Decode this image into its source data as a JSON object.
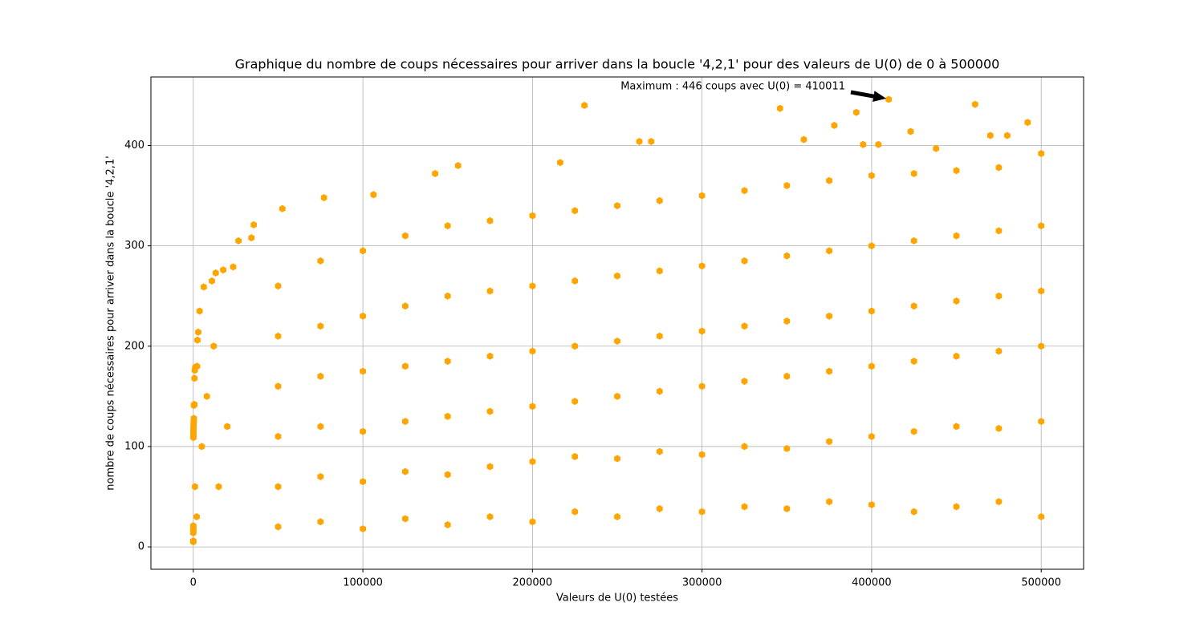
{
  "chart_data": {
    "type": "scatter",
    "title": "Graphique du nombre de coups nécessaires pour arriver dans la boucle '4,2,1' pour des valeurs de U(0) de 0 à 500000",
    "x_label": "Valeurs de U(0) testées",
    "y_label": "nombre de coups nécessaires pour arriver dans la boucle '4,2,1'",
    "color": "#ffa500",
    "grid": true,
    "xlim": [
      -25000,
      525000
    ],
    "ylim": [
      -22.3,
      468.3
    ],
    "xticks": [
      0,
      100000,
      200000,
      300000,
      400000,
      500000
    ],
    "yticks": [
      0,
      100,
      200,
      300,
      400
    ],
    "annotation": {
      "text": "Maximum : 446 coups avec U(0) = 410011",
      "xy": [
        410011,
        446
      ]
    },
    "x": [
      3,
      6,
      7,
      9,
      18,
      25,
      27,
      54,
      73,
      97,
      129,
      171,
      231,
      313,
      327,
      649,
      703,
      871,
      1161,
      2223,
      2463,
      2919,
      3711,
      6171,
      10971,
      13255,
      17647,
      23529,
      26623,
      34239,
      35655,
      52527,
      77031,
      106239,
      142587,
      156159,
      216367,
      230631,
      410011,
      346000,
      461000,
      391000,
      378000,
      423000,
      492000,
      470000,
      480000,
      263000,
      270000,
      360000,
      395000,
      404000,
      438000,
      5000,
      8000,
      12000,
      15000,
      20000,
      2000,
      1000,
      50000,
      50000,
      50000,
      50000,
      50000,
      50000,
      75000,
      75000,
      75000,
      75000,
      75000,
      75000,
      100000,
      100000,
      100000,
      100000,
      100000,
      100000,
      125000,
      125000,
      125000,
      125000,
      125000,
      125000,
      150000,
      150000,
      150000,
      150000,
      150000,
      150000,
      175000,
      175000,
      175000,
      175000,
      175000,
      175000,
      200000,
      200000,
      200000,
      200000,
      200000,
      200000,
      225000,
      225000,
      225000,
      225000,
      225000,
      225000,
      250000,
      250000,
      250000,
      250000,
      250000,
      250000,
      275000,
      275000,
      275000,
      275000,
      275000,
      275000,
      300000,
      300000,
      300000,
      300000,
      300000,
      300000,
      325000,
      325000,
      325000,
      325000,
      325000,
      325000,
      350000,
      350000,
      350000,
      350000,
      350000,
      350000,
      375000,
      375000,
      375000,
      375000,
      375000,
      375000,
      400000,
      400000,
      400000,
      400000,
      400000,
      400000,
      425000,
      425000,
      425000,
      425000,
      425000,
      425000,
      450000,
      450000,
      450000,
      450000,
      450000,
      450000,
      475000,
      475000,
      475000,
      475000,
      475000,
      475000,
      500000,
      500000,
      500000,
      500000,
      500000,
      500000
    ],
    "values": [
      5,
      6,
      14,
      17,
      18,
      21,
      109,
      110,
      113,
      116,
      119,
      122,
      125,
      128,
      141,
      142,
      168,
      176,
      179,
      180,
      206,
      214,
      235,
      259,
      265,
      273,
      276,
      279,
      305,
      308,
      321,
      337,
      348,
      351,
      372,
      380,
      383,
      440,
      446,
      437,
      441,
      433,
      420,
      414,
      423,
      410,
      410,
      404,
      404,
      406,
      401,
      401,
      397,
      100,
      150,
      200,
      60,
      120,
      30,
      60,
      20,
      60,
      110,
      160,
      210,
      260,
      25,
      70,
      120,
      170,
      220,
      285,
      18,
      65,
      115,
      175,
      230,
      295,
      28,
      75,
      125,
      180,
      240,
      310,
      22,
      72,
      130,
      185,
      250,
      320,
      30,
      80,
      135,
      190,
      255,
      325,
      25,
      85,
      140,
      195,
      260,
      330,
      35,
      90,
      145,
      200,
      265,
      335,
      30,
      88,
      150,
      205,
      270,
      340,
      38,
      95,
      155,
      210,
      275,
      345,
      35,
      92,
      160,
      215,
      280,
      350,
      40,
      100,
      165,
      220,
      285,
      355,
      38,
      98,
      170,
      225,
      290,
      360,
      45,
      105,
      175,
      230,
      295,
      365,
      42,
      110,
      180,
      235,
      300,
      370,
      35,
      115,
      185,
      240,
      305,
      372,
      40,
      120,
      190,
      245,
      310,
      375,
      45,
      118,
      195,
      250,
      315,
      378,
      30,
      125,
      200,
      255,
      320,
      392
    ]
  }
}
